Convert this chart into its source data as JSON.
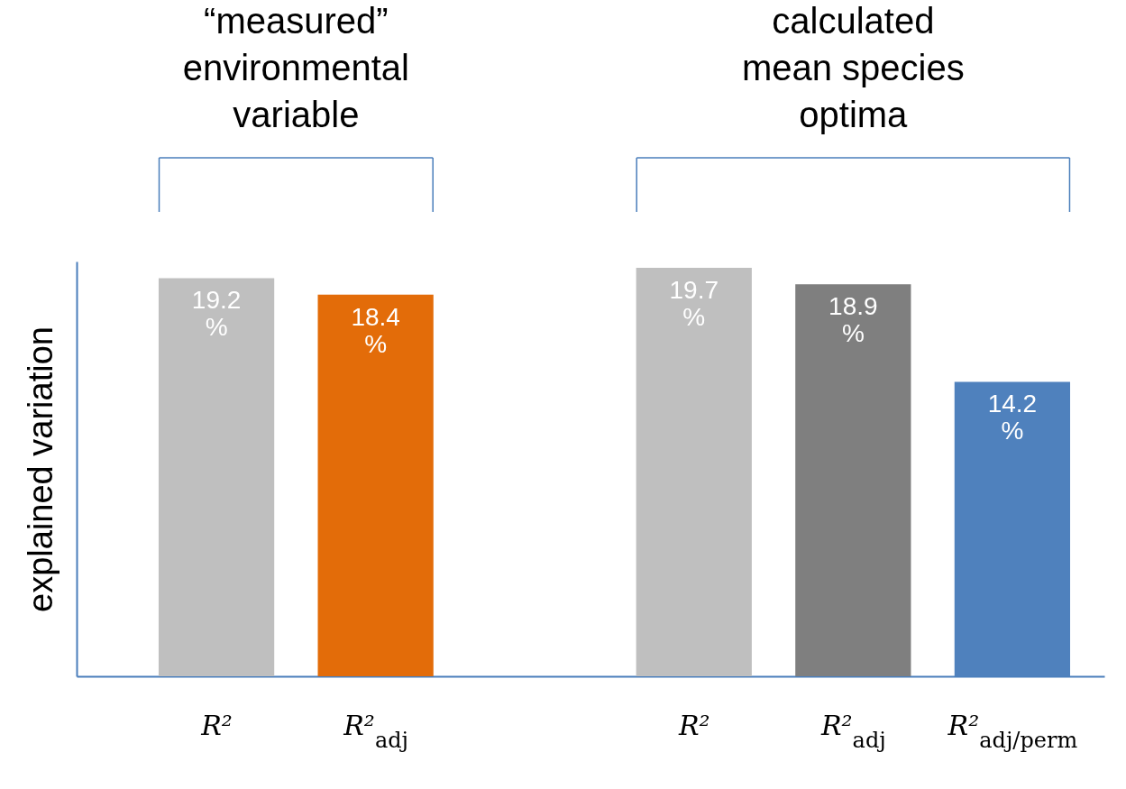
{
  "chart_data": {
    "type": "bar",
    "ylabel": "explained variation",
    "categories": [
      "R²",
      "R²$_{adj}$",
      null,
      "R²",
      "R²$_{adj}$",
      "R²$_{adj/perm}$"
    ],
    "values": [
      19.2,
      18.4,
      null,
      19.7,
      18.9,
      14.2
    ],
    "colors": [
      "#bfbfbf",
      "#e36c09",
      "#ffffff",
      "#bfbfbf",
      "#7f7f7f",
      "#4f81bd"
    ],
    "value_labels": [
      "19.2 %",
      "18.4 %",
      null,
      "19.7 %",
      "18.9 %",
      "14.2 %"
    ],
    "annotations": [
      "“measured”\nenvironmental\nvariable",
      "calculated\nmean species\noptima"
    ],
    "tick_labels": "x",
    "grid": false
  }
}
